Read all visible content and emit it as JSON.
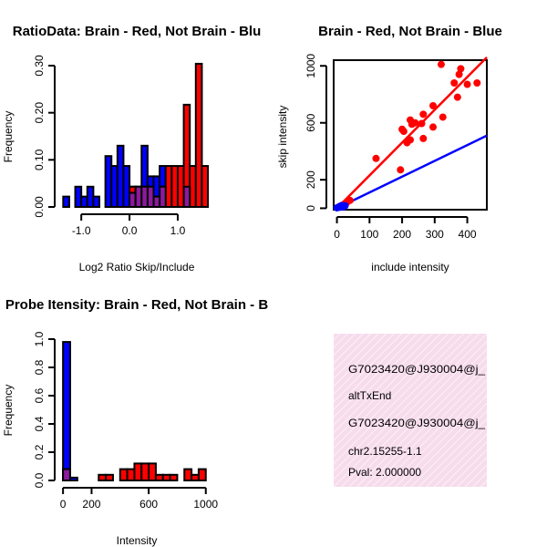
{
  "colors": {
    "red": "#ff0000",
    "blue": "#0000ff",
    "purple": "#8b1a9c",
    "pink_panel": "#f7dcec",
    "pval_text": "#b00000"
  },
  "info_panel": {
    "line1": "G7023420@J930004@j_",
    "line2": "altTxEnd",
    "line3": "G7023420@J930004@j_",
    "line4": "chr2.15255-1.1",
    "pval": "Pval: 2.000000"
  },
  "chart_data": [
    {
      "type": "bar",
      "title": "RatioData: Brain - Red, Not Brain - Blu",
      "xlabel": "Log2 Ratio Skip/Include",
      "ylabel": "Frequency",
      "xlim": [
        -1.4,
        1.7
      ],
      "ylim": [
        0,
        0.3
      ],
      "xticks": [
        "-1.0",
        "0.0",
        "1.0"
      ],
      "xtick_values": [
        -1.0,
        0.0,
        1.0
      ],
      "yticks": [
        "0.00",
        "0.10",
        "0.20",
        "0.30"
      ],
      "ytick_values": [
        0,
        0.1,
        0.2,
        0.3
      ],
      "bin_width": 0.125,
      "series": [
        {
          "name": "Not Brain",
          "color": "blue",
          "bin_starts": [
            -1.375,
            -1.125,
            -1.0,
            -0.875,
            -0.75,
            -0.5,
            -0.375,
            -0.25,
            -0.125,
            0.0,
            0.125,
            0.25,
            0.375,
            0.5,
            0.625,
            1.125
          ],
          "values": [
            0.022,
            0.043,
            0.022,
            0.043,
            0.022,
            0.108,
            0.087,
            0.13,
            0.087,
            0.043,
            0.043,
            0.13,
            0.065,
            0.065,
            0.087,
            0.043
          ]
        },
        {
          "name": "Brain",
          "color": "red",
          "bin_starts": [
            0.0,
            0.125,
            0.25,
            0.375,
            0.5,
            0.625,
            0.75,
            0.875,
            1.0,
            1.125,
            1.25,
            1.375,
            1.5
          ],
          "values": [
            0.043,
            0.043,
            0.043,
            0.043,
            0.022,
            0.043,
            0.087,
            0.087,
            0.087,
            0.217,
            0.087,
            0.304,
            0.087
          ]
        },
        {
          "name": "Overlap",
          "color": "purple",
          "bin_starts": [
            0.0,
            0.125,
            0.25,
            0.375,
            0.5,
            0.625,
            1.125
          ],
          "values": [
            0.03,
            0.043,
            0.043,
            0.043,
            0.022,
            0.043,
            0.043
          ]
        }
      ]
    },
    {
      "type": "scatter",
      "title": "Brain - Red, Not Brain - Blue",
      "xlabel": "include intensity",
      "ylabel": "skip intensity",
      "xlim": [
        -10,
        460
      ],
      "ylim": [
        -10,
        1040
      ],
      "xticks": [
        "0",
        "100",
        "200",
        "300",
        "400"
      ],
      "xtick_values": [
        0,
        100,
        200,
        300,
        400
      ],
      "yticks": [
        "0",
        "200",
        "600",
        "1000"
      ],
      "ytick_values": [
        0,
        200,
        600,
        1000
      ],
      "series": [
        {
          "name": "Brain",
          "color": "red",
          "points": [
            [
              5,
              8
            ],
            [
              10,
              15
            ],
            [
              20,
              25
            ],
            [
              30,
              40
            ],
            [
              40,
              55
            ],
            [
              120,
              350
            ],
            [
              195,
              270
            ],
            [
              200,
              555
            ],
            [
              205,
              540
            ],
            [
              215,
              460
            ],
            [
              225,
              480
            ],
            [
              225,
              620
            ],
            [
              230,
              590
            ],
            [
              240,
              600
            ],
            [
              260,
              595
            ],
            [
              265,
              490
            ],
            [
              265,
              660
            ],
            [
              295,
              720
            ],
            [
              295,
              570
            ],
            [
              320,
              1010
            ],
            [
              325,
              640
            ],
            [
              360,
              880
            ],
            [
              370,
              780
            ],
            [
              375,
              940
            ],
            [
              380,
              980
            ],
            [
              400,
              870
            ],
            [
              430,
              880
            ]
          ],
          "fit_line": [
            [
              0,
              0
            ],
            [
              460,
              1060
            ]
          ]
        },
        {
          "name": "Not Brain",
          "color": "blue",
          "points": [
            [
              0,
              3
            ],
            [
              5,
              6
            ],
            [
              8,
              12
            ],
            [
              10,
              8
            ],
            [
              12,
              15
            ],
            [
              15,
              20
            ],
            [
              20,
              10
            ],
            [
              25,
              18
            ]
          ],
          "fit_line": [
            [
              0,
              0
            ],
            [
              460,
              510
            ]
          ]
        }
      ]
    },
    {
      "type": "bar",
      "title": "Probe Itensity: Brain - Red, Not Brain - B",
      "xlabel": "Intensity",
      "ylabel": "Frequency",
      "xlim": [
        -20,
        1040
      ],
      "ylim": [
        0,
        1.0
      ],
      "xticks": [
        "0",
        "200",
        "600",
        "1000"
      ],
      "xtick_values": [
        0,
        200,
        600,
        1000
      ],
      "yticks": [
        "0.0",
        "0.2",
        "0.4",
        "0.6",
        "0.8",
        "1.0"
      ],
      "ytick_values": [
        0,
        0.2,
        0.4,
        0.6,
        0.8,
        1.0
      ],
      "bin_width": 50,
      "series": [
        {
          "name": "Not Brain",
          "color": "blue",
          "bin_starts": [
            0,
            50
          ],
          "values": [
            0.98,
            0.02
          ]
        },
        {
          "name": "Brain",
          "color": "red",
          "bin_starts": [
            0,
            250,
            300,
            400,
            450,
            500,
            550,
            600,
            650,
            700,
            750,
            850,
            900,
            950
          ],
          "values": [
            0.08,
            0.04,
            0.04,
            0.08,
            0.08,
            0.12,
            0.12,
            0.12,
            0.04,
            0.04,
            0.04,
            0.08,
            0.04,
            0.08
          ]
        },
        {
          "name": "Overlap",
          "color": "purple",
          "bin_starts": [
            0
          ],
          "values": [
            0.08
          ]
        }
      ]
    }
  ]
}
